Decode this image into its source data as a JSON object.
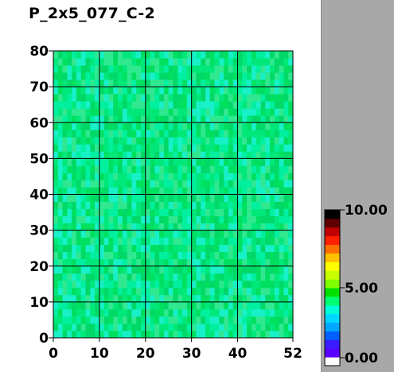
{
  "title": "P_2x5_077_C-2",
  "chart_data": {
    "type": "heatmap",
    "title": "P_2x5_077_C-2",
    "xlabel": "",
    "ylabel": "",
    "x_range": [
      0,
      52
    ],
    "y_range": [
      0,
      80
    ],
    "x_ticks": [
      "0",
      "10",
      "20",
      "30",
      "40",
      "52"
    ],
    "y_ticks": [
      "0",
      "10",
      "20",
      "30",
      "40",
      "50",
      "60",
      "70",
      "80"
    ],
    "grid": true,
    "value_range": [
      0,
      10
    ],
    "approx_cell_value": 5.2,
    "colorbar": {
      "labels": [
        "10.00",
        "5.00",
        "0.00"
      ],
      "colors": [
        "#ffffff",
        "#5a00ff",
        "#3c1cff",
        "#0060ff",
        "#00a6ff",
        "#00d8ff",
        "#00ffd8",
        "#00ff70",
        "#00e000",
        "#7fff00",
        "#c8ff00",
        "#ffff00",
        "#ffc000",
        "#ff7000",
        "#ff2000",
        "#c00000",
        "#600000",
        "#000000"
      ]
    }
  }
}
